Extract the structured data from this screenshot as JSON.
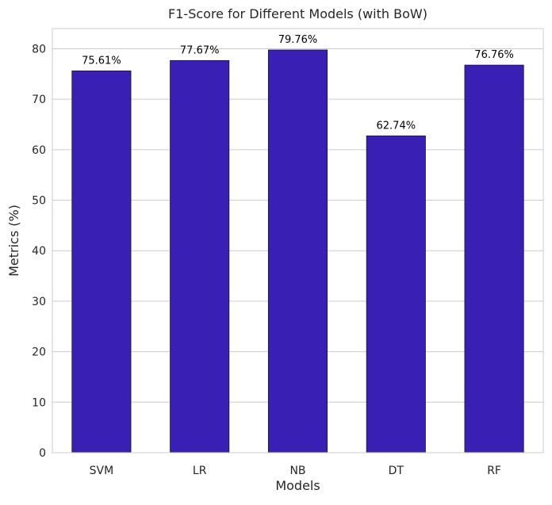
{
  "chart_data": {
    "type": "bar",
    "title": "F1-Score for Different Models (with BoW)",
    "xlabel": "Models",
    "ylabel": "Metrics (%)",
    "categories": [
      "SVM",
      "LR",
      "NB",
      "DT",
      "RF"
    ],
    "values": [
      75.61,
      77.67,
      79.76,
      62.74,
      76.76
    ],
    "data_labels": [
      "75.61%",
      "77.67%",
      "79.76%",
      "62.74%",
      "76.76%"
    ],
    "ylim": [
      0,
      84
    ],
    "yticks": [
      0,
      10,
      20,
      30,
      40,
      50,
      60,
      70,
      80
    ],
    "grid": "horizontal",
    "bar_color": "#3a1fb4"
  }
}
